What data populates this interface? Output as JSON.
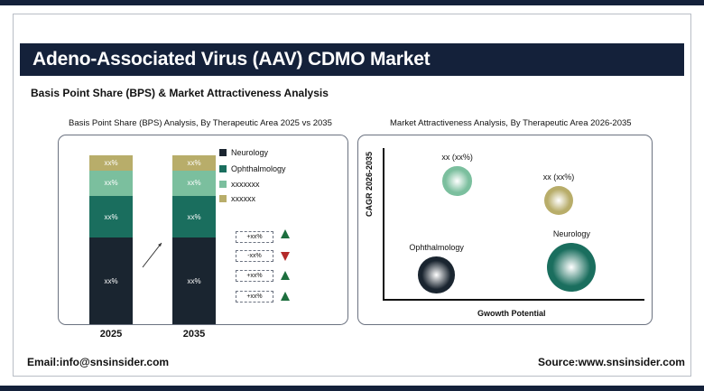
{
  "header": {
    "title": "Adeno-Associated Virus (AAV) CDMO Market",
    "subtitle": "Basis Point Share (BPS) & Market Attractiveness Analysis"
  },
  "colors": {
    "navy": "#14213a",
    "neurology": "#1a2530",
    "ophthalmology": "#1a6e5e",
    "series3": "#7bbf9e",
    "series4": "#b8ad6a",
    "up": "#1d6e3e",
    "down": "#b42a2a"
  },
  "chart_data": [
    {
      "type": "bar",
      "stacked": true,
      "title": "Basis Point Share (BPS) Analysis, By Therapeutic Area 2025 vs 2035",
      "categories": [
        "2025",
        "2035"
      ],
      "series": [
        {
          "name": "Neurology",
          "values": [
            0.49,
            0.49
          ],
          "labels": [
            "xx%",
            "xx%"
          ],
          "color": "#1a2530"
        },
        {
          "name": "Ophthalmology",
          "values": [
            0.24,
            0.24
          ],
          "labels": [
            "xx%",
            "xx%"
          ],
          "color": "#1a6e5e"
        },
        {
          "name": "xxxxxxx",
          "values": [
            0.14,
            0.14
          ],
          "labels": [
            "xx%",
            "xx%"
          ],
          "color": "#7bbf9e"
        },
        {
          "name": "xxxxxx",
          "values": [
            0.09,
            0.09
          ],
          "labels": [
            "xx%",
            "xx%"
          ],
          "color": "#b8ad6a"
        }
      ],
      "changes": [
        {
          "label": "+xx%",
          "direction": "up"
        },
        {
          "label": "-xx%",
          "direction": "down"
        },
        {
          "label": "+xx%",
          "direction": "up"
        },
        {
          "label": "+xx%",
          "direction": "up"
        }
      ],
      "legend_position": "right"
    },
    {
      "type": "scatter",
      "title": "Market Attractiveness Analysis, By Therapeutic Area 2026-2035",
      "xlabel": "Gwowth Potential",
      "ylabel": "CAGR 2026-2035",
      "points": [
        {
          "label": "xx (xx%)",
          "x": 0.28,
          "y": 0.79,
          "size": 0.6,
          "color": "#7bbf9e"
        },
        {
          "label": "xx (xx%)",
          "x": 0.67,
          "y": 0.66,
          "size": 0.6,
          "color": "#b8ad6a"
        },
        {
          "label": "Ophthalmology",
          "x": 0.2,
          "y": 0.16,
          "size": 0.75,
          "color": "#1a2530"
        },
        {
          "label": "Neurology",
          "x": 0.72,
          "y": 0.21,
          "size": 1.0,
          "color": "#1a6e5e"
        }
      ]
    }
  ],
  "footer": {
    "email": "Email:info@snsinsider.com",
    "source": "Source:www.snsinsider.com"
  }
}
